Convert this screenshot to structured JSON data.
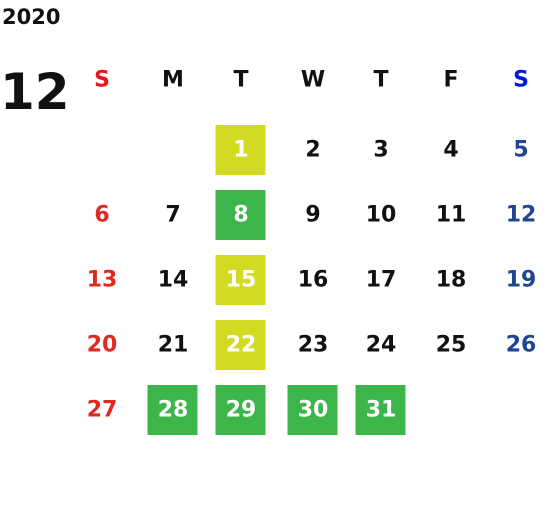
{
  "calendar": {
    "year": "2020",
    "month": "12",
    "weekdays": [
      {
        "text": "S",
        "color": "#e8161c"
      },
      {
        "text": "M",
        "color": "#111111"
      },
      {
        "text": "T",
        "color": "#111111"
      },
      {
        "text": "W",
        "color": "#111111"
      },
      {
        "text": "T",
        "color": "#111111"
      },
      {
        "text": "F",
        "color": "#111111"
      },
      {
        "text": "S",
        "color": "#0018d8"
      }
    ],
    "day_colors": [
      "#e02a20",
      "#111111",
      "#111111",
      "#111111",
      "#111111",
      "#111111",
      "#1f4593"
    ],
    "highlight_text_color": "#ffffff",
    "weeks": [
      [
        null,
        null,
        {
          "text": "1",
          "fill": "#d3da22"
        },
        {
          "text": "2"
        },
        {
          "text": "3"
        },
        {
          "text": "4"
        },
        {
          "text": "5"
        }
      ],
      [
        {
          "text": "6"
        },
        {
          "text": "7"
        },
        {
          "text": "8",
          "fill": "#3cb54a"
        },
        {
          "text": "9"
        },
        {
          "text": "10"
        },
        {
          "text": "11"
        },
        {
          "text": "12"
        }
      ],
      [
        {
          "text": "13"
        },
        {
          "text": "14"
        },
        {
          "text": "15",
          "fill": "#d3da22"
        },
        {
          "text": "16"
        },
        {
          "text": "17"
        },
        {
          "text": "18"
        },
        {
          "text": "19"
        }
      ],
      [
        {
          "text": "20"
        },
        {
          "text": "21"
        },
        {
          "text": "22",
          "fill": "#d3da22"
        },
        {
          "text": "23"
        },
        {
          "text": "24"
        },
        {
          "text": "25"
        },
        {
          "text": "26"
        }
      ],
      [
        {
          "text": "27"
        },
        {
          "text": "28",
          "fill": "#3cb54a"
        },
        {
          "text": "29",
          "fill": "#3cb54a"
        },
        {
          "text": "30",
          "fill": "#3cb54a"
        },
        {
          "text": "31",
          "fill": "#3cb54a"
        },
        null,
        null
      ]
    ]
  }
}
